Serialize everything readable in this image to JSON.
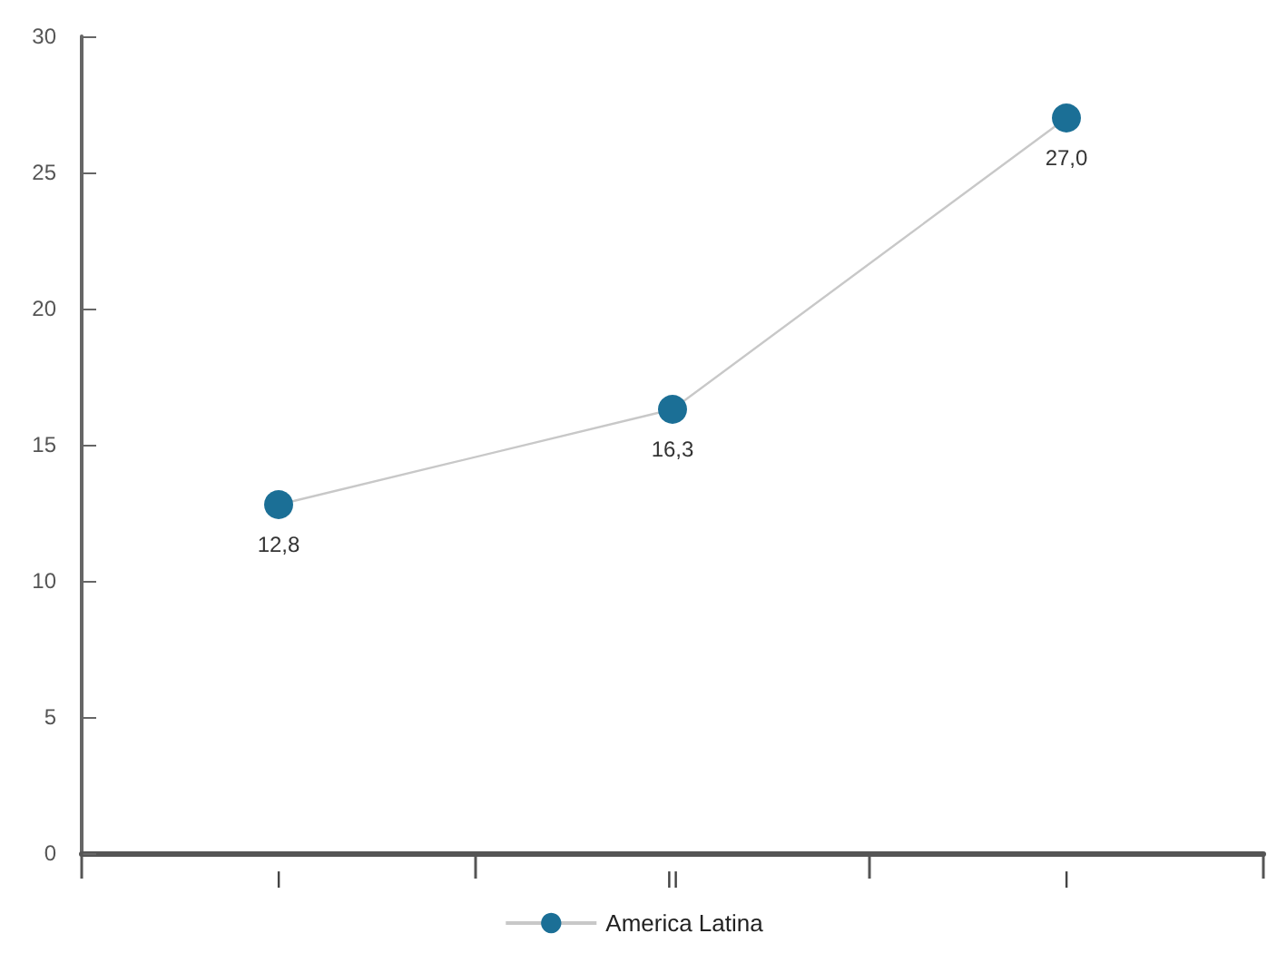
{
  "chart_data": {
    "type": "line",
    "categories": [
      "I",
      "II",
      "I"
    ],
    "series": [
      {
        "name": "America Latina",
        "color": "#1b6f96",
        "values": [
          12.8,
          16.3,
          27.0
        ],
        "value_labels": [
          "12,8",
          "16,3",
          "27,0"
        ]
      }
    ],
    "ylim": [
      0,
      30
    ],
    "yticks": [
      0,
      5,
      10,
      15,
      20,
      25,
      30
    ],
    "grid": false,
    "legend": "bottom",
    "marker": "circle",
    "line_style": "solid"
  }
}
